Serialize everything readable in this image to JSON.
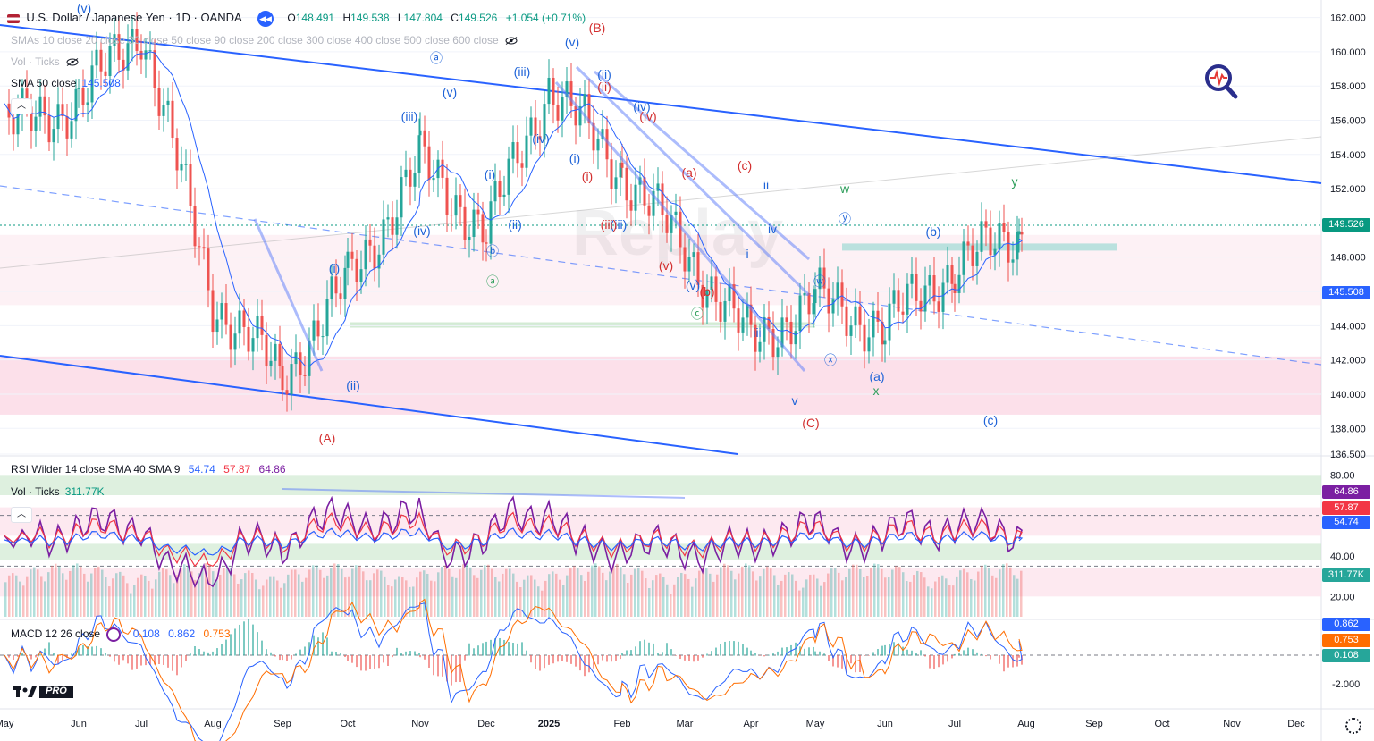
{
  "header": {
    "symbol_title": "U.S. Dollar / Japanese Yen · 1D · OANDA",
    "open_label": "O",
    "open": "148.491",
    "high_label": "H",
    "high": "149.538",
    "low_label": "L",
    "low": "147.804",
    "close_label": "C",
    "close": "149.526",
    "change": "+1.054 (+0.71%)"
  },
  "legends": {
    "smas": "SMAs 10 close 20 close 30 close 50 close 90 close 200 close 300 close 400 close 500 close 600 close",
    "vol_top": "Vol · Ticks",
    "sma50_label": "SMA 50 close",
    "sma50_value": "145.508",
    "rsi_label": "RSI Wilder 14 close SMA 40 SMA 9",
    "rsi_v1": "54.74",
    "rsi_v2": "57.87",
    "rsi_v3": "64.86",
    "vol_label": "Vol · Ticks",
    "vol_value": "311.77K",
    "macd_label": "MACD 12 26 close",
    "macd_v1": "0.108",
    "macd_v2": "0.862",
    "macd_v3": "0.753"
  },
  "badges": {
    "price": "149.526",
    "sma50": "145.508",
    "rsi_a": "64.86",
    "rsi_b": "57.87",
    "rsi_c": "54.74",
    "vol": "311.77K",
    "macd_a": "0.862",
    "macd_b": "0.753",
    "macd_c": "0.108"
  },
  "logo_text": "PRO",
  "watermark": "Replay",
  "colors": {
    "up": "#26a69a",
    "down": "#ef5350",
    "sma": "#2962ff",
    "channel": "#2962ff",
    "rsi": "#7b1fa2",
    "rsi_sma": "#f23645",
    "rsi_sma2": "#2962ff",
    "macd": "#2962ff",
    "signal": "#ff6d00",
    "wave_red": "#d32f2f",
    "wave_blue": "#1e63d8",
    "wave_green": "#2e9e5b"
  },
  "chart_data": [
    {
      "type": "candlestick",
      "title": "U.S. Dollar / Japanese Yen · 1D · OANDA",
      "x_ticks": [
        "May",
        "Jun",
        "Jul",
        "Aug",
        "Sep",
        "Oct",
        "Nov",
        "Dec",
        "2025",
        "Feb",
        "Mar",
        "Apr",
        "May",
        "Jun",
        "Jul",
        "Aug",
        "Sep",
        "Oct",
        "Nov",
        "Dec"
      ],
      "y_ticks": [
        "162.000",
        "160.000",
        "158.000",
        "156.000",
        "154.000",
        "152.000",
        "150.000",
        "148.000",
        "146.000",
        "144.000",
        "142.000",
        "140.000",
        "138.000",
        "136.500"
      ],
      "ylim": [
        136.5,
        162.5
      ],
      "monthly_path": [
        {
          "m": "May",
          "v": 155.5
        },
        {
          "m": "Jun",
          "v": 157.0
        },
        {
          "m": "Jul",
          "v": 161.5
        },
        {
          "m": "Aug",
          "v": 145.5
        },
        {
          "m": "Sep",
          "v": 141.0
        },
        {
          "m": "Oct",
          "v": 146.5
        },
        {
          "m": "Nov",
          "v": 153.5
        },
        {
          "m": "Dec",
          "v": 149.5
        },
        {
          "m": "2025",
          "v": 158.0
        },
        {
          "m": "Feb",
          "v": 153.0
        },
        {
          "m": "Mar",
          "v": 148.5
        },
        {
          "m": "Apr",
          "v": 143.0
        },
        {
          "m": "May",
          "v": 145.5
        },
        {
          "m": "Jun",
          "v": 144.0
        },
        {
          "m": "Jul",
          "v": 147.5
        },
        {
          "m": "Aug",
          "v": 149.5
        }
      ],
      "last_close": 149.526,
      "sma50_last": 145.508,
      "wave_labels": [
        "(v)",
        "(B)",
        "ⓐ",
        "(iii)",
        "(ii)",
        "(iii)",
        "(v)",
        "(ii)",
        "(iv)",
        "(iv)",
        "(iv)",
        "(i)",
        "(i)",
        "(i)",
        "ii",
        "(a)",
        "(c)",
        "w",
        "y",
        "(iv)",
        "(ii)",
        "ⓑ",
        "ⓐ",
        "(i)",
        "(iii)",
        "(v)",
        "(iii)",
        "ⓒ",
        "(b)",
        "iv",
        "ⓨ",
        "ⓦ",
        "ⓧ",
        "i",
        "(ii)",
        "(A)",
        "(C)",
        "(a)",
        "x",
        "(c)",
        "iii",
        "v"
      ]
    },
    {
      "type": "line",
      "title": "RSI Wilder 14 close SMA 40 SMA 9",
      "y_ticks": [
        "80.00",
        "40.00",
        "20.00"
      ],
      "ylim": [
        10,
        85
      ],
      "series": [
        {
          "name": "RSI",
          "last": 64.86
        },
        {
          "name": "SMA 9",
          "last": 57.87
        },
        {
          "name": "SMA 40",
          "last": 54.74
        }
      ]
    },
    {
      "type": "bar",
      "title": "Vol · Ticks",
      "last": "311.77K"
    },
    {
      "type": "line",
      "title": "MACD 12 26 close",
      "y_ticks": [
        "-2.000"
      ],
      "series": [
        {
          "name": "Histogram",
          "last": 0.108
        },
        {
          "name": "MACD",
          "last": 0.862
        },
        {
          "name": "Signal",
          "last": 0.753
        }
      ]
    }
  ]
}
